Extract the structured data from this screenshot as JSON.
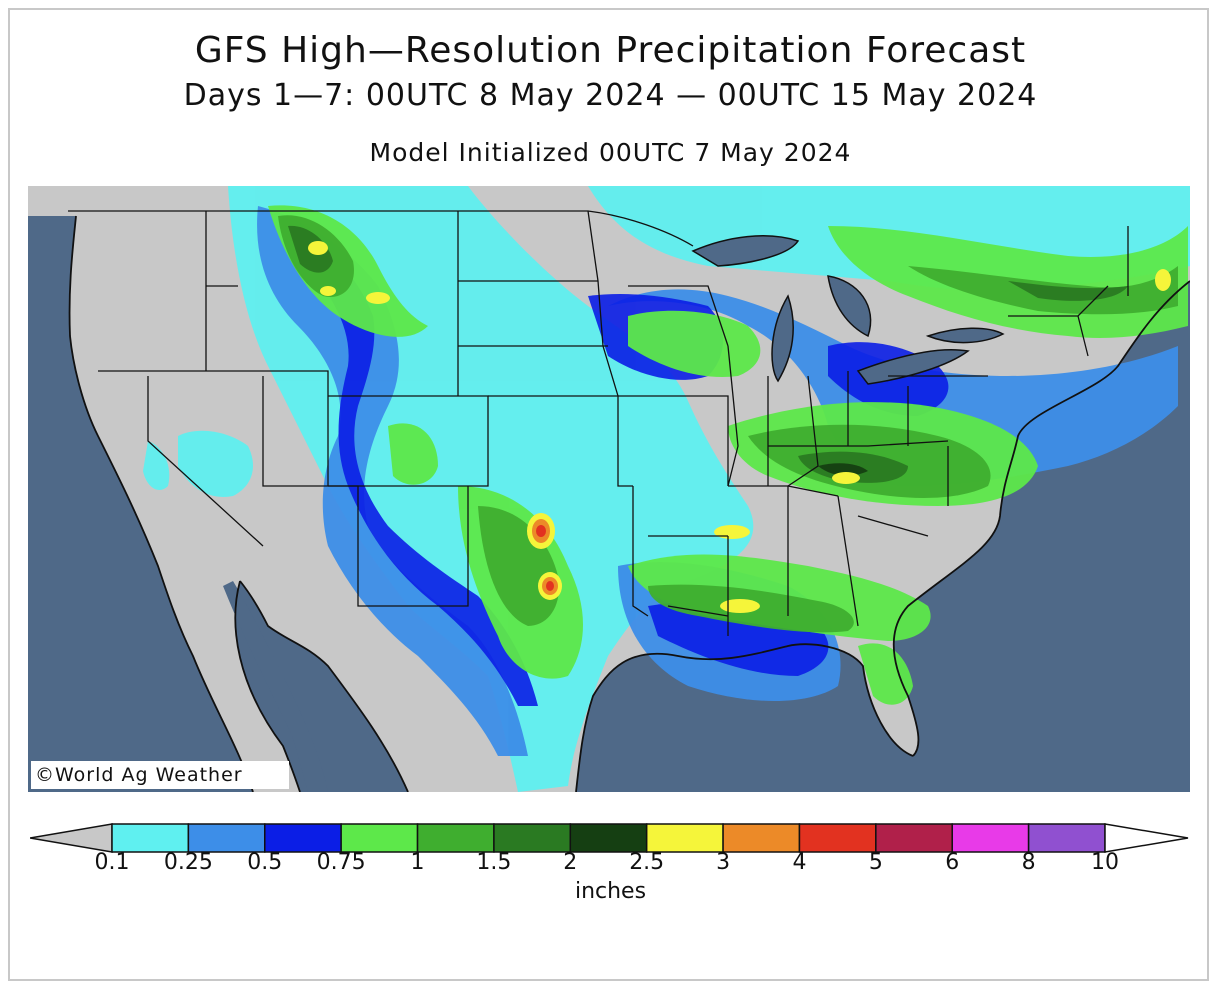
{
  "title": "GFS High—Resolution Precipitation Forecast",
  "period": "Days 1—7: 00UTC 8 May 2024 — 00UTC 15 May 2024",
  "init": "Model Initialized 00UTC 7 May 2024",
  "credit": "©World Ag Weather",
  "legend": {
    "units": "inches",
    "labels": [
      "0.1",
      "0.25",
      "0.5",
      "0.75",
      "1",
      "1.5",
      "2",
      "2.5",
      "3",
      "4",
      "5",
      "6",
      "8",
      "10"
    ],
    "colors": [
      "#c8c8c8",
      "#5ff0f0",
      "#3d8ee8",
      "#0b1ee6",
      "#5de84a",
      "#3fae2f",
      "#2a7a22",
      "#153f12",
      "#f5f53a",
      "#ec8a28",
      "#e23220",
      "#b0204a",
      "#e83ae8",
      "#9050d0",
      "#ffffff"
    ]
  },
  "map": {
    "ocean_color": "#4f6988",
    "land_color": "#c8c8c8"
  }
}
